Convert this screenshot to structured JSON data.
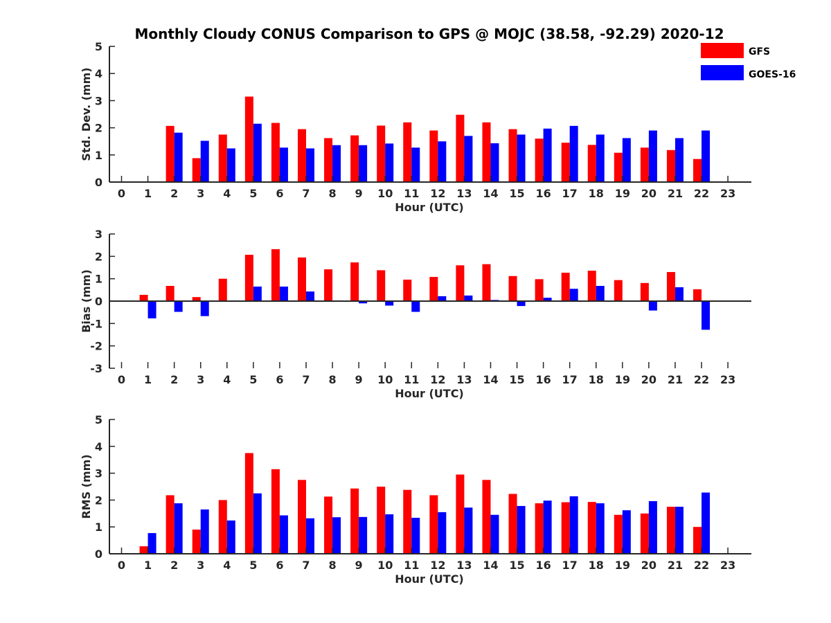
{
  "chart_data": {
    "type": "bar",
    "title": "Monthly Cloudy CONUS Comparison to GPS @ MOJC (38.58, -92.29) 2020-12",
    "legend": {
      "placement": "top-right",
      "entries": [
        {
          "name": "GFS",
          "color": "#ff0000"
        },
        {
          "name": "GOES-16",
          "color": "#0000ff"
        }
      ]
    },
    "colors": {
      "GFS": "#ff0000",
      "GOES-16": "#0000ff",
      "axis": "#262626"
    },
    "categories": [
      0,
      1,
      2,
      3,
      4,
      5,
      6,
      7,
      8,
      9,
      10,
      11,
      12,
      13,
      14,
      15,
      16,
      17,
      18,
      19,
      20,
      21,
      22,
      23
    ],
    "panels": [
      {
        "id": "std",
        "ylabel": "Std. Dev. (mm)",
        "xlabel": "Hour (UTC)",
        "ylim": [
          0,
          5
        ],
        "yticks": [
          0,
          1,
          2,
          3,
          4,
          5
        ],
        "series": [
          {
            "name": "GFS",
            "values": [
              null,
              null,
              2.07,
              0.88,
              1.75,
              3.15,
              2.18,
              1.95,
              1.62,
              1.72,
              2.08,
              2.2,
              1.9,
              2.48,
              2.2,
              1.95,
              1.6,
              1.45,
              1.37,
              1.08,
              1.27,
              1.18,
              0.85,
              null
            ]
          },
          {
            "name": "GOES-16",
            "values": [
              null,
              null,
              1.82,
              1.52,
              1.24,
              2.15,
              1.27,
              1.24,
              1.36,
              1.36,
              1.42,
              1.27,
              1.5,
              1.7,
              1.43,
              1.75,
              1.97,
              2.07,
              1.75,
              1.62,
              1.9,
              1.62,
              1.9,
              null
            ]
          }
        ]
      },
      {
        "id": "bias",
        "ylabel": "Bias (mm)",
        "xlabel": "Hour (UTC)",
        "ylim": [
          -3,
          3
        ],
        "yticks": [
          -3,
          -2,
          -1,
          0,
          1,
          2,
          3
        ],
        "series": [
          {
            "name": "GFS",
            "values": [
              null,
              0.28,
              0.68,
              0.18,
              1.0,
              2.07,
              2.32,
              1.95,
              1.42,
              1.73,
              1.38,
              0.96,
              1.08,
              1.6,
              1.65,
              1.12,
              0.98,
              1.27,
              1.36,
              0.94,
              0.81,
              1.3,
              0.53,
              null
            ]
          },
          {
            "name": "GOES-16",
            "values": [
              null,
              -0.77,
              -0.48,
              -0.67,
              -0.02,
              0.65,
              0.65,
              0.43,
              -0.02,
              -0.1,
              -0.2,
              -0.48,
              0.22,
              0.25,
              0.05,
              -0.22,
              0.15,
              0.55,
              0.68,
              -0.02,
              -0.42,
              0.62,
              -1.28,
              null
            ]
          }
        ]
      },
      {
        "id": "rms",
        "ylabel": "RMS (mm)",
        "xlabel": "Hour (UTC)",
        "ylim": [
          0,
          5
        ],
        "yticks": [
          0,
          1,
          2,
          3,
          4,
          5
        ],
        "series": [
          {
            "name": "GFS",
            "values": [
              null,
              0.28,
              2.18,
              0.9,
              2.0,
              3.75,
              3.15,
              2.75,
              2.13,
              2.43,
              2.5,
              2.38,
              2.18,
              2.95,
              2.75,
              2.23,
              1.88,
              1.92,
              1.93,
              1.45,
              1.5,
              1.75,
              1.0,
              null
            ]
          },
          {
            "name": "GOES-16",
            "values": [
              null,
              0.77,
              1.88,
              1.65,
              1.24,
              2.25,
              1.43,
              1.32,
              1.36,
              1.37,
              1.47,
              1.34,
              1.55,
              1.72,
              1.45,
              1.78,
              1.98,
              2.14,
              1.88,
              1.62,
              1.96,
              1.75,
              2.28,
              null
            ]
          }
        ]
      }
    ]
  }
}
